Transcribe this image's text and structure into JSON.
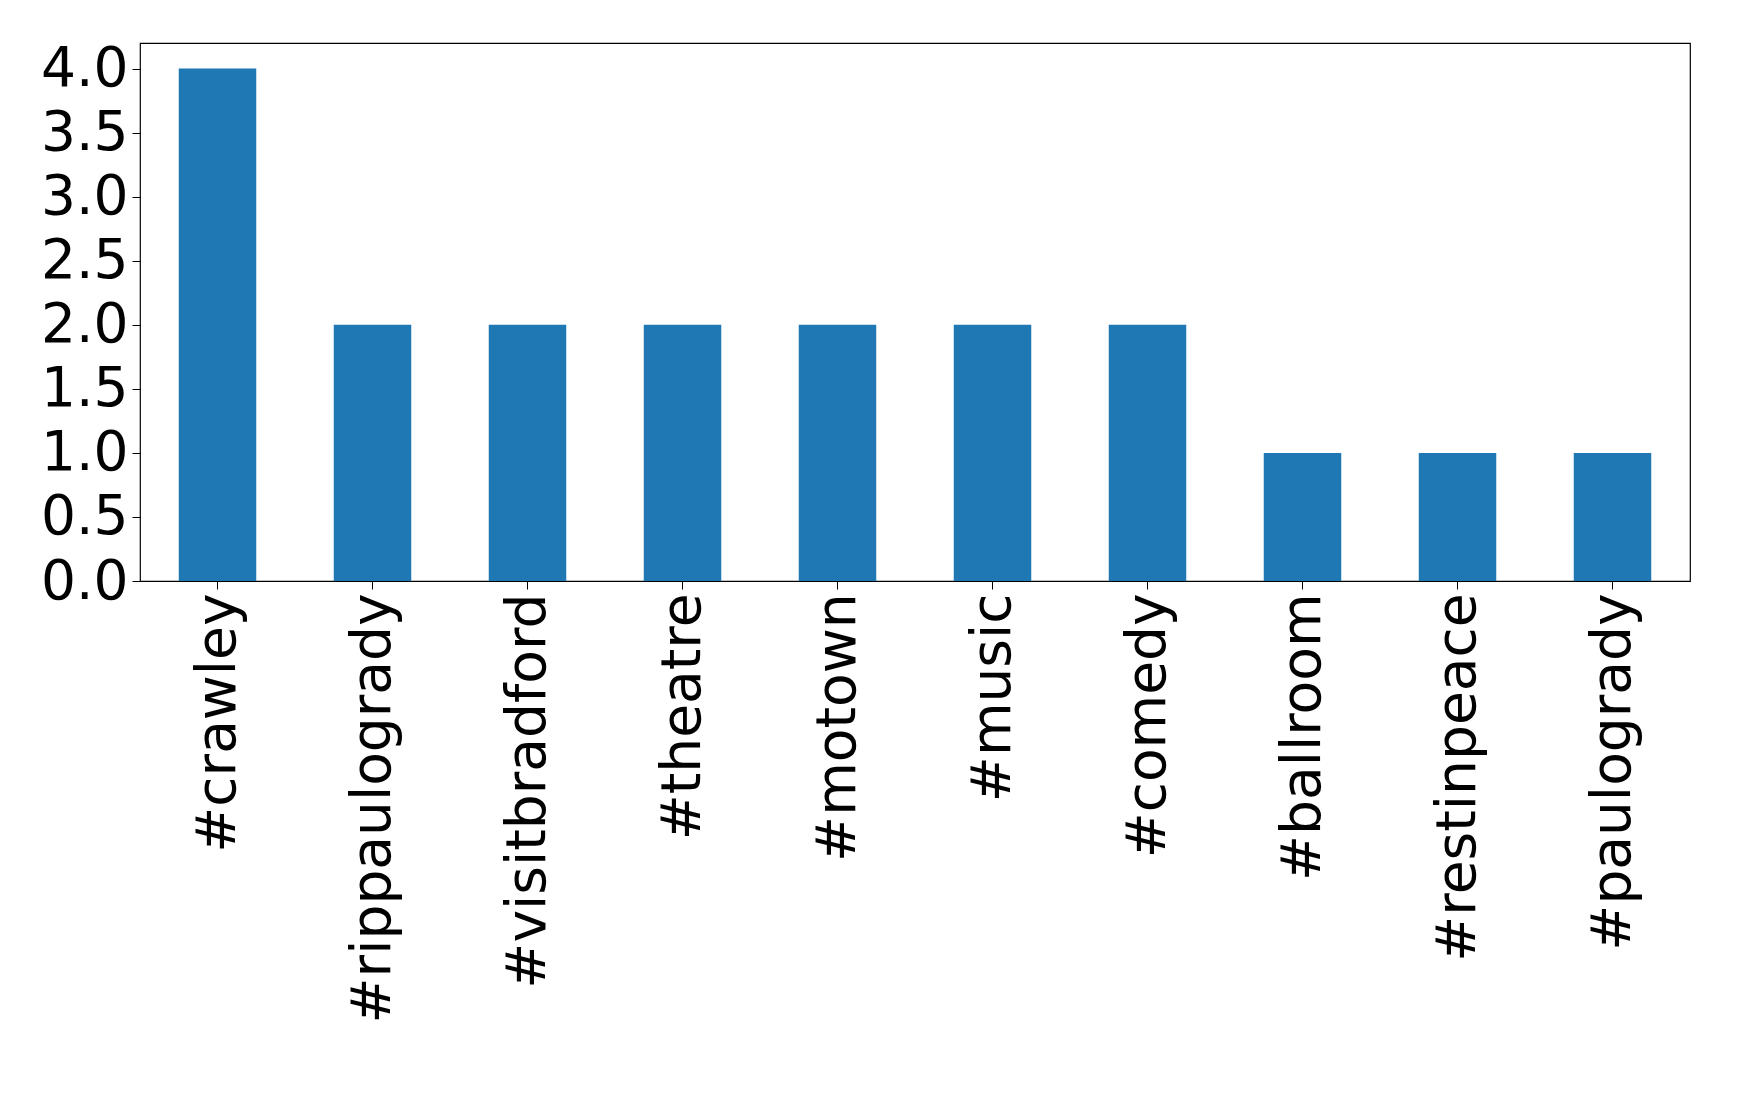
{
  "chart_data": {
    "type": "bar",
    "categories": [
      "#crawley",
      "#rippaulogrady",
      "#visitbradford",
      "#theatre",
      "#motown",
      "#music",
      "#comedy",
      "#ballroom",
      "#restinpeace",
      "#paulogrady"
    ],
    "values": [
      4,
      2,
      2,
      2,
      2,
      2,
      2,
      1,
      1,
      1
    ],
    "color": "#1f77b4",
    "ylim": [
      0,
      4.2
    ],
    "yticks": [
      {
        "value": 0,
        "label": "0.0"
      },
      {
        "value": 0.5,
        "label": "0.5"
      },
      {
        "value": 1,
        "label": "1.0"
      },
      {
        "value": 1.5,
        "label": "1.5"
      },
      {
        "value": 2,
        "label": "2.0"
      },
      {
        "value": 2.5,
        "label": "2.5"
      },
      {
        "value": 3,
        "label": "3.0"
      },
      {
        "value": 3.5,
        "label": "3.5"
      },
      {
        "value": 4,
        "label": "4.0"
      }
    ],
    "grid": false
  }
}
